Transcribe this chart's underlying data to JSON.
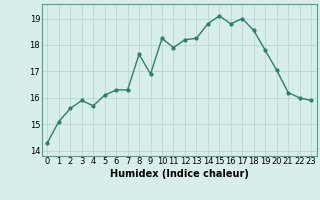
{
  "x": [
    0,
    1,
    2,
    3,
    4,
    5,
    6,
    7,
    8,
    9,
    10,
    11,
    12,
    13,
    14,
    15,
    16,
    17,
    18,
    19,
    20,
    21,
    22,
    23
  ],
  "y": [
    14.3,
    15.1,
    15.6,
    15.9,
    15.7,
    16.1,
    16.3,
    16.3,
    17.65,
    16.9,
    18.25,
    17.9,
    18.2,
    18.25,
    18.8,
    19.1,
    18.8,
    19.0,
    18.55,
    17.8,
    17.05,
    16.2,
    16.0,
    15.9
  ],
  "line_color": "#2e7d6e",
  "marker": "o",
  "marker_size": 2,
  "line_width": 1.0,
  "bg_color": "#d7eeeb",
  "grid_color": "#b8d8d2",
  "xlabel": "Humidex (Indice chaleur)",
  "xlabel_fontsize": 7,
  "tick_fontsize": 6,
  "xlim": [
    -0.5,
    23.5
  ],
  "ylim": [
    13.8,
    19.55
  ],
  "yticks": [
    14,
    15,
    16,
    17,
    18,
    19
  ],
  "xticks": [
    0,
    1,
    2,
    3,
    4,
    5,
    6,
    7,
    8,
    9,
    10,
    11,
    12,
    13,
    14,
    15,
    16,
    17,
    18,
    19,
    20,
    21,
    22,
    23
  ]
}
